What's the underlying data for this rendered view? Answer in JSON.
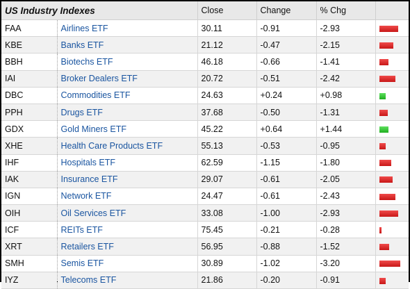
{
  "table": {
    "title": "US Industry Indexes",
    "columns": [
      "Close",
      "Change",
      "% Chg"
    ],
    "rows": [
      {
        "symbol": "FAA",
        "name": "Airlines ETF",
        "close": "30.11",
        "change": "-0.91",
        "pct": "-2.93",
        "pct_value": -2.93
      },
      {
        "symbol": "KBE",
        "name": "Banks ETF",
        "close": "21.12",
        "change": "-0.47",
        "pct": "-2.15",
        "pct_value": -2.15
      },
      {
        "symbol": "BBH",
        "name": "Biotechs ETF",
        "close": "46.18",
        "change": "-0.66",
        "pct": "-1.41",
        "pct_value": -1.41
      },
      {
        "symbol": "IAI",
        "name": "Broker Dealers ETF",
        "close": "20.72",
        "change": "-0.51",
        "pct": "-2.42",
        "pct_value": -2.42
      },
      {
        "symbol": "DBC",
        "name": "Commodities ETF",
        "close": "24.63",
        "change": "+0.24",
        "pct": "+0.98",
        "pct_value": 0.98
      },
      {
        "symbol": "PPH",
        "name": "Drugs ETF",
        "close": "37.68",
        "change": "-0.50",
        "pct": "-1.31",
        "pct_value": -1.31
      },
      {
        "symbol": "GDX",
        "name": "Gold Miners ETF",
        "close": "45.22",
        "change": "+0.64",
        "pct": "+1.44",
        "pct_value": 1.44
      },
      {
        "symbol": "XHE",
        "name": "Health Care Products ETF",
        "close": "55.13",
        "change": "-0.53",
        "pct": "-0.95",
        "pct_value": -0.95
      },
      {
        "symbol": "IHF",
        "name": "Hospitals ETF",
        "close": "62.59",
        "change": "-1.15",
        "pct": "-1.80",
        "pct_value": -1.8
      },
      {
        "symbol": "IAK",
        "name": "Insurance ETF",
        "close": "29.07",
        "change": "-0.61",
        "pct": "-2.05",
        "pct_value": -2.05
      },
      {
        "symbol": "IGN",
        "name": "Network ETF",
        "close": "24.47",
        "change": "-0.61",
        "pct": "-2.43",
        "pct_value": -2.43
      },
      {
        "symbol": "OIH",
        "name": "Oil Services ETF",
        "close": "33.08",
        "change": "-1.00",
        "pct": "-2.93",
        "pct_value": -2.93
      },
      {
        "symbol": "ICF",
        "name": "REITs ETF",
        "close": "75.45",
        "change": "-0.21",
        "pct": "-0.28",
        "pct_value": -0.28
      },
      {
        "symbol": "XRT",
        "name": "Retailers ETF",
        "close": "56.95",
        "change": "-0.88",
        "pct": "-1.52",
        "pct_value": -1.52
      },
      {
        "symbol": "SMH",
        "name": "Semis ETF",
        "close": "30.89",
        "change": "-1.02",
        "pct": "-3.20",
        "pct_value": -3.2
      },
      {
        "symbol": "IYZ",
        "name": "Telecoms ETF",
        "close": "21.86",
        "change": "-0.20",
        "pct": "-0.91",
        "pct_value": -0.91
      }
    ]
  },
  "colors": {
    "negative": "#d42020",
    "positive": "#2cc22c",
    "link": "#1a55a0"
  }
}
